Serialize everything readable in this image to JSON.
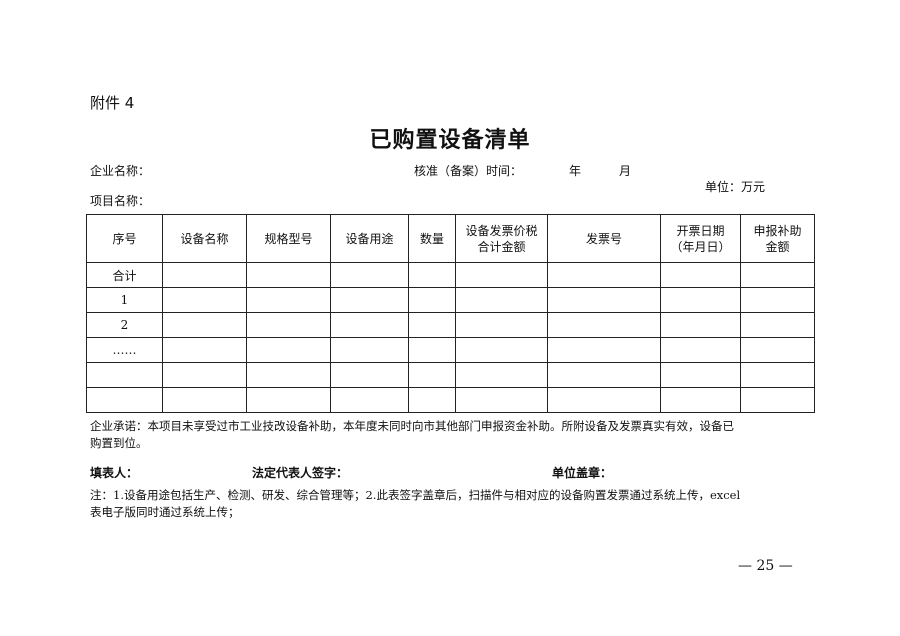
{
  "attachment_label": "附件 4",
  "title": "已购置设备清单",
  "fields": {
    "company_name": "企业名称：",
    "approval_time": "核准（备案）时间：",
    "year": "年",
    "month": "月",
    "unit": "单位：万元",
    "project_name": "项目名称："
  },
  "table": {
    "headers": [
      "序号",
      "设备名称",
      "规格型号",
      "设备用途",
      "数量",
      "设备发票价税\n合计金额",
      "发票号",
      "开票日期\n（年月日）",
      "申报补助\n金额"
    ],
    "rows": [
      [
        "合计",
        "",
        "",
        "",
        "",
        "",
        "",
        "",
        ""
      ],
      [
        "1",
        "",
        "",
        "",
        "",
        "",
        "",
        "",
        ""
      ],
      [
        "2",
        "",
        "",
        "",
        "",
        "",
        "",
        "",
        ""
      ],
      [
        "……",
        "",
        "",
        "",
        "",
        "",
        "",
        "",
        ""
      ],
      [
        "",
        "",
        "",
        "",
        "",
        "",
        "",
        "",
        ""
      ],
      [
        "",
        "",
        "",
        "",
        "",
        "",
        "",
        "",
        ""
      ]
    ]
  },
  "commitment_line1": "企业承诺：本项目未享受过市工业技改设备补助，本年度未同时向市其他部门申报资金补助。所附设备及发票真实有效，设备已",
  "commitment_line2": "购置到位。",
  "signatures": {
    "filler": "填表人：",
    "legal_rep": "法定代表人签字：",
    "seal": "单位盖章："
  },
  "note_line1": "注：1.设备用途包括生产、检测、研发、综合管理等；2.此表签字盖章后，扫描件与相对应的设备购置发票通过系统上传，excel",
  "note_line2": "表电子版同时通过系统上传；",
  "page_number": "— 25 —"
}
